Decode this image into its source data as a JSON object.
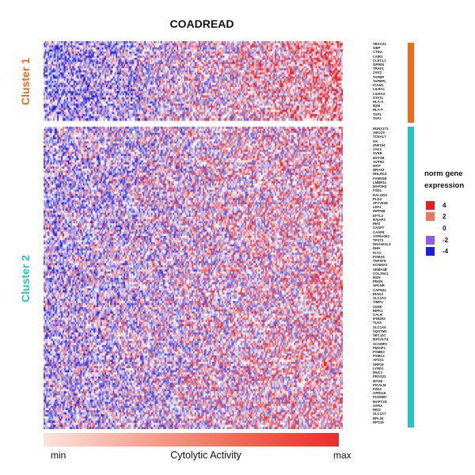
{
  "chart_data": {
    "type": "heatmap",
    "title": "COADREAD",
    "clusters": [
      {
        "name": "Cluster 1",
        "color": "#ee6b1b",
        "genes": [
          "TBXAS1",
          "GBP",
          "CTDA",
          "LAIR1",
          "CLECL1",
          "GPR84",
          "TRAF1",
          "JAK2",
          "TAPBP",
          "TAPBPL",
          "ICAM1",
          "LILRA1",
          "LILRA3",
          "STAT1",
          "HLA-A",
          "B2M",
          "HLA-F",
          "TAP1",
          "TAP2"
        ]
      },
      {
        "name": "Cluster 2",
        "color": "#27c3c2",
        "genes": [
          "RUNX1T1",
          "ABCC9",
          "TCEAL7",
          "GK",
          "ZNF154",
          "JAK1",
          "SVEB",
          "MAT2B",
          "AVPR2",
          "MITF",
          "NRAS3",
          "NHLRC4",
          "FAM5SB",
          "LMBR1L",
          "MAP3K5",
          "FSD1",
          "RALGDS",
          "PLD3",
          "ZFYVE28",
          "LEF1",
          "INPP4B",
          "EFTL2",
          "BAIAP2",
          "IRF2",
          "CASP7",
          "CASP8",
          "ATP6V0E1",
          "TPST2",
          "DNASE1L3",
          "DHH",
          "FLT3",
          "PSMA6",
          "TNFSF9",
          "KCNMA1",
          "SEMA4B",
          "COL25A1",
          "MSN",
          "PDGN",
          "APLNR",
          "CAPN11",
          "IRAK3",
          "SLC2A3",
          "TIMP1",
          "CD58",
          "RIPK1",
          "CALR",
          "IFNGR2",
          "TLK5",
          "SLC1A5",
          "SQSTM1",
          "SEC11C",
          "B3GALT4",
          "SCAMP2",
          "PMAIP1",
          "PSMB3",
          "PSMC2",
          "AP2S1",
          "SRP19",
          "LYPD1",
          "MUC1",
          "PRSS23",
          "MYH9",
          "PICALM",
          "FZD4",
          "GPR116",
          "PCDHB7",
          "MAPT2D",
          "GFRA",
          "NID2",
          "SLC1A7",
          "RPL34",
          "RPS19"
        ]
      }
    ],
    "legend": {
      "title_line1": "norm gene",
      "title_line2": "expression",
      "entries": [
        {
          "label": "4",
          "color": "#e81d1d"
        },
        {
          "label": "2",
          "color": "#f4715c"
        },
        {
          "label": "0",
          "color": "#ffffff"
        },
        {
          "label": "-2",
          "color": "#8b5cf0"
        },
        {
          "label": "-4",
          "color": "#1a1ee0"
        }
      ],
      "placement": "right"
    },
    "color_scale": {
      "min": -4,
      "max": 4,
      "low_color": "#1a1ee0",
      "mid_color": "#ffffff",
      "high_color": "#e81d1d"
    },
    "annotation": {
      "label": "Cytolytic Activity",
      "min_label": "min",
      "max_label": "max",
      "low_color": "#fde2d8",
      "high_color": "#ef2b2b"
    }
  }
}
